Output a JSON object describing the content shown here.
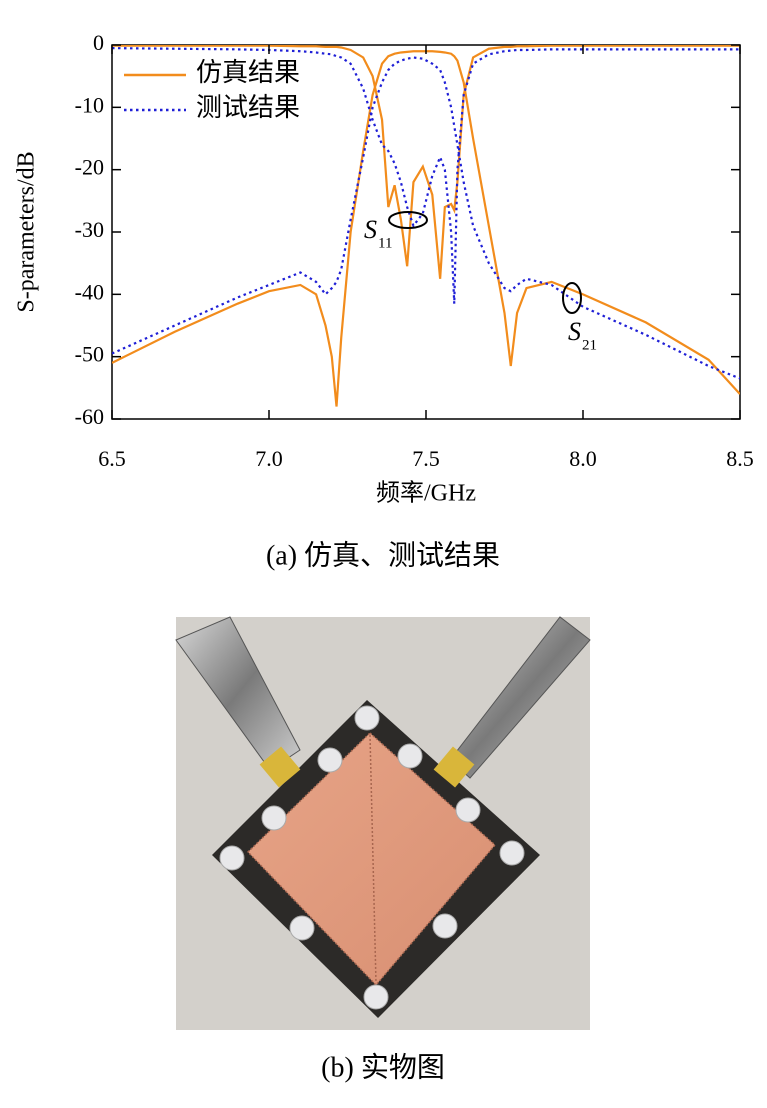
{
  "chart_data": {
    "type": "line",
    "ylabel": "S-parameters/dB",
    "xlabel": "频率/GHz",
    "xlim": [
      6.5,
      8.5
    ],
    "ylim": [
      -60,
      0
    ],
    "xticks": [
      6.5,
      {
        "value": 7,
        "label": "7.0"
      },
      7.5,
      {
        "value": 8,
        "label": "8.0"
      },
      8.5
    ],
    "yticks": [
      0,
      -10,
      -20,
      -30,
      -40,
      -50,
      -60
    ],
    "legend": "upper left",
    "x": [
      6.5,
      6.7,
      6.9,
      7.0,
      7.1,
      7.15,
      7.18,
      7.2,
      7.215,
      7.23,
      7.26,
      7.3,
      7.33,
      7.36,
      7.38,
      7.4,
      7.42,
      7.44,
      7.46,
      7.49,
      7.52,
      7.545,
      7.56,
      7.58,
      7.59,
      7.6,
      7.62,
      7.65,
      7.7,
      7.75,
      7.77,
      7.79,
      7.82,
      7.9,
      8.0,
      8.2,
      8.4,
      8.5
    ],
    "series": [
      {
        "name": "仿真结果",
        "color": "#f28c1c",
        "style": "solid",
        "s11": [
          -0.1,
          -0.1,
          -0.1,
          -0.1,
          -0.2,
          -0.2,
          -0.3,
          -0.3,
          -0.3,
          -0.4,
          -0.8,
          -2,
          -5,
          -12,
          -26,
          -22.5,
          -28,
          -35.5,
          -22,
          -19.5,
          -24,
          -37.5,
          -26,
          -25.5,
          -26.5,
          -22,
          -8,
          -2,
          -0.6,
          -0.3,
          -0.3,
          -0.2,
          -0.2,
          -0.1,
          -0.1,
          -0.1,
          -0.1,
          -0.1
        ],
        "s21": [
          -51,
          -46,
          -41.5,
          -39.5,
          -38.5,
          -40,
          -45,
          -50,
          -58,
          -47,
          -30,
          -17,
          -8,
          -3,
          -1.8,
          -1.4,
          -1.2,
          -1.1,
          -1,
          -1,
          -1,
          -1.1,
          -1.2,
          -1.4,
          -1.8,
          -2.5,
          -6,
          -15,
          -29,
          -43,
          -51.5,
          -43,
          -39,
          -38,
          -40,
          -44.5,
          -50.5,
          -56
        ]
      },
      {
        "name": "测试结果",
        "color": "#1f1fd6",
        "style": "dotted",
        "s11": [
          -0.5,
          -0.6,
          -0.7,
          -0.8,
          -1,
          -1.2,
          -1.4,
          -1.5,
          -1.8,
          -2,
          -3,
          -7,
          -12,
          -16,
          -17,
          -19,
          -22,
          -26,
          -29,
          -27,
          -21,
          -18,
          -20,
          -30,
          -41.5,
          -20,
          -8,
          -3,
          -1.5,
          -1,
          -0.9,
          -0.8,
          -0.8,
          -0.7,
          -0.7,
          -0.7,
          -0.7,
          -0.7
        ],
        "s21": [
          -49.5,
          -45,
          -40.5,
          -38.5,
          -36.5,
          -38,
          -40,
          -39,
          -38,
          -36,
          -28,
          -18,
          -10,
          -6,
          -4,
          -3,
          -2.5,
          -2.2,
          -2,
          -2.2,
          -3,
          -4,
          -6,
          -10,
          -13,
          -16,
          -22,
          -29,
          -35,
          -39,
          -39.5,
          -38.5,
          -37.5,
          -38.5,
          -42,
          -46.5,
          -51.5,
          -53.5
        ]
      }
    ],
    "annotations": [
      {
        "text": "S",
        "subscript": "11"
      },
      {
        "text": "S",
        "subscript": "21"
      }
    ]
  },
  "captions": [
    "(a) 仿真、测试结果",
    "(b) 实物图"
  ]
}
